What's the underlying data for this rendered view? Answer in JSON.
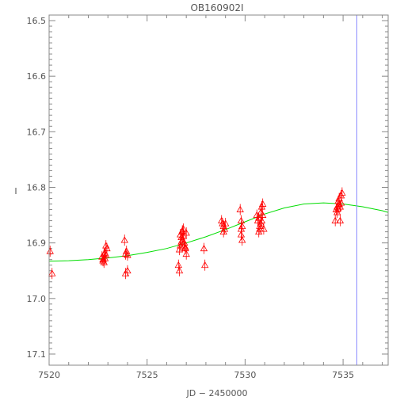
{
  "chart_data": {
    "type": "scatter",
    "title": "OB160902I",
    "xlabel": "JD − 2450000",
    "ylabel": "I",
    "xlim": [
      7520,
      7537.3
    ],
    "ylim": [
      17.12,
      16.49
    ],
    "y_inverted": true,
    "x_ticks": [
      "7520",
      "7525",
      "7530",
      "7535"
    ],
    "y_ticks": [
      "16.5",
      "16.6",
      "16.7",
      "16.8",
      "16.9",
      "17.0",
      "17.1"
    ],
    "grid": false,
    "colors": {
      "points": "#ff0000",
      "model": "#00dd00",
      "marker_line": "#8888ff",
      "axes": "#888888"
    },
    "vertical_marker_x": 7535.7,
    "model_curve": {
      "x": [
        7520,
        7521,
        7522,
        7523,
        7524,
        7525,
        7526,
        7527,
        7528,
        7529,
        7530,
        7531,
        7532,
        7533,
        7534,
        7535,
        7536,
        7537,
        7537.3
      ],
      "y": [
        16.933,
        16.932,
        16.93,
        16.927,
        16.923,
        16.917,
        16.91,
        16.9,
        16.889,
        16.876,
        16.862,
        16.848,
        16.837,
        16.83,
        16.828,
        16.83,
        16.835,
        16.842,
        16.845
      ]
    },
    "series": [
      {
        "x": [
          7520.05,
          7520.15,
          7522.7,
          7522.75,
          7522.8,
          7522.85,
          7522.9,
          7522.95,
          7522.8,
          7522.85,
          7522.9,
          7522.75,
          7523.85,
          7523.9,
          7523.95,
          7524.0,
          7523.9,
          7524.0,
          7526.6,
          7526.65,
          7526.7,
          7526.75,
          7526.8,
          7526.85,
          7526.9,
          7526.95,
          7527.0,
          7526.7,
          7526.8,
          7526.9,
          7527.0,
          7526.65,
          7526.75,
          7526.85,
          7526.95,
          7526.8,
          7527.9,
          7527.95,
          7528.8,
          7528.85,
          7528.9,
          7528.95,
          7529.0,
          7528.9,
          7529.75,
          7529.8,
          7529.85,
          7529.8,
          7529.85,
          7529.8,
          7530.6,
          7530.65,
          7530.7,
          7530.75,
          7530.8,
          7530.85,
          7530.9,
          7530.95,
          7530.7,
          7530.8,
          7530.9,
          7530.75,
          7530.85,
          7534.6,
          7534.65,
          7534.7,
          7534.75,
          7534.8,
          7534.85,
          7534.9,
          7534.95,
          7534.7,
          7534.8,
          7534.9,
          7534.75,
          7534.85
        ],
        "y": [
          16.915,
          16.955,
          16.925,
          16.93,
          16.92,
          16.928,
          16.905,
          16.91,
          16.935,
          16.918,
          16.922,
          16.932,
          16.895,
          16.92,
          16.915,
          16.95,
          16.955,
          16.922,
          16.94,
          16.95,
          16.905,
          16.89,
          16.88,
          16.875,
          16.9,
          16.91,
          16.92,
          16.885,
          16.895,
          16.905,
          16.882,
          16.912,
          16.898,
          16.888,
          16.908,
          16.878,
          16.91,
          16.94,
          16.86,
          16.865,
          16.87,
          16.875,
          16.865,
          16.88,
          16.84,
          16.86,
          16.87,
          16.885,
          16.895,
          16.875,
          16.85,
          16.86,
          16.855,
          16.87,
          16.845,
          16.835,
          16.83,
          16.875,
          16.88,
          16.865,
          16.85,
          16.875,
          16.86,
          16.86,
          16.84,
          16.835,
          16.825,
          16.83,
          16.835,
          16.815,
          16.81,
          16.845,
          16.82,
          16.828,
          16.838,
          16.86
        ],
        "err": 0.01
      }
    ]
  }
}
